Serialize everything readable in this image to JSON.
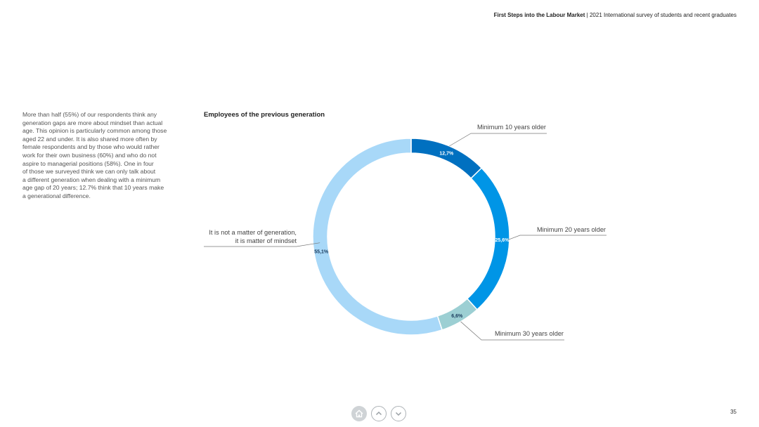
{
  "header": {
    "title_bold": "First Steps into the Labour Market",
    "separator": "|",
    "subtitle": "2021 International survey of students and recent graduates"
  },
  "body_text": "More than half (55%) of our respondents think any\ngeneration gaps are more about mindset than actual\nage. This opinion is particularly common among those\naged 22 and under. It is also shared more often by\nfemale respondents and by those who would rather\nwork for their own business (60%) and who do not\naspire to managerial positions (58%). One in four\nof those we surveyed think we can only talk about\na different generation when dealing with a minimum\nage gap of 20 years; 12.7% think that 10 years make\na generational difference.",
  "chart_data": {
    "type": "pie",
    "title": "Employees of the previous generation",
    "slices": [
      {
        "label": "Minimum 10 years older",
        "value": 12.7,
        "value_label": "12,7%",
        "color": "#0070c0"
      },
      {
        "label": "Minimum 20 years older",
        "value": 25.6,
        "value_label": "25,6%",
        "color": "#0095e6"
      },
      {
        "label": "Minimum 30 years older",
        "value": 6.6,
        "value_label": "6,6%",
        "color": "#9ccfd3"
      },
      {
        "label_lines": [
          "It is not a matter of generation,",
          "it is matter of mindset"
        ],
        "value": 55.1,
        "value_label": "55,1%",
        "color": "#a8d8f8"
      }
    ]
  },
  "footer": {
    "page_number": "35",
    "home_icon": "home-icon",
    "up_icon": "chevron-up-icon",
    "down_icon": "chevron-down-icon"
  }
}
